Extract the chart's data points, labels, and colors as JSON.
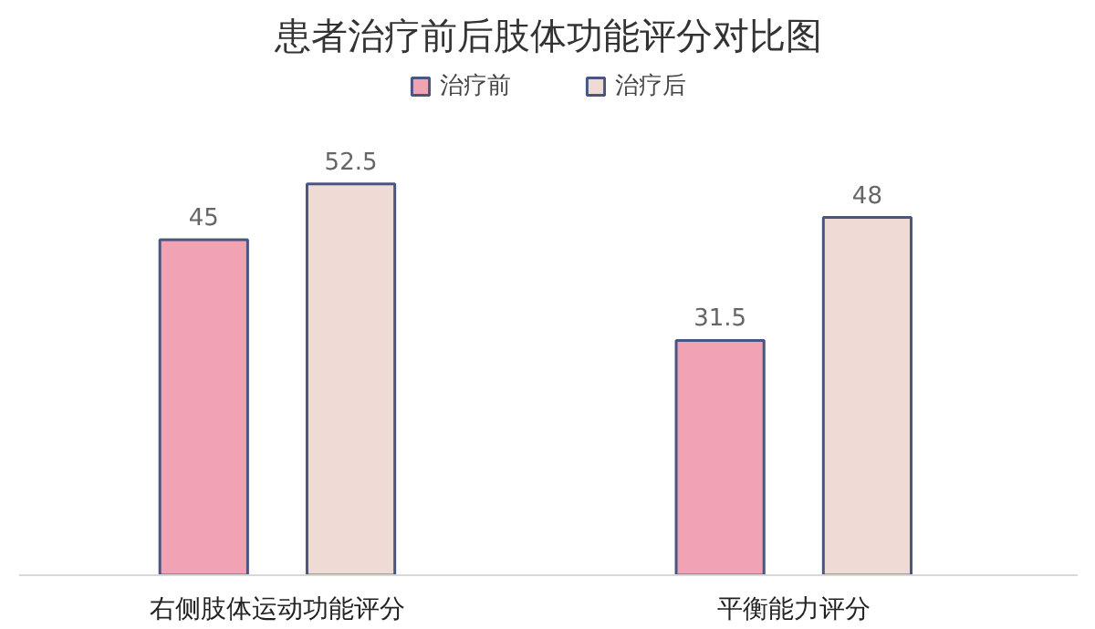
{
  "chart_data": {
    "type": "bar",
    "title": "患者治疗前后肢体功能评分对比图",
    "categories": [
      "右侧肢体运动功能评分",
      "平衡能力评分"
    ],
    "series": [
      {
        "name": "治疗前",
        "color": "#f2a3b3",
        "values": [
          45,
          31.5
        ]
      },
      {
        "name": "治疗后",
        "color": "#efdad6",
        "values": [
          52.5,
          48
        ]
      }
    ],
    "data_labels": true,
    "legend": "top",
    "grid": false
  }
}
